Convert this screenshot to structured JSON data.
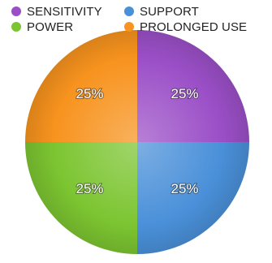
{
  "chart_data": {
    "type": "pie",
    "title": "",
    "slices": [
      {
        "label": "SENSITIVITY",
        "value": 25,
        "display": "25%",
        "color": "#9b4fc7"
      },
      {
        "label": "SUPPORT",
        "value": 25,
        "display": "25%",
        "color": "#4a90d9"
      },
      {
        "label": "POWER",
        "value": 25,
        "display": "25%",
        "color": "#7cc531"
      },
      {
        "label": "PROLONGED USE",
        "value": 25,
        "display": "25%",
        "color": "#f7931e"
      }
    ],
    "legend_position": "top",
    "start_angle": "top, clockwise"
  }
}
